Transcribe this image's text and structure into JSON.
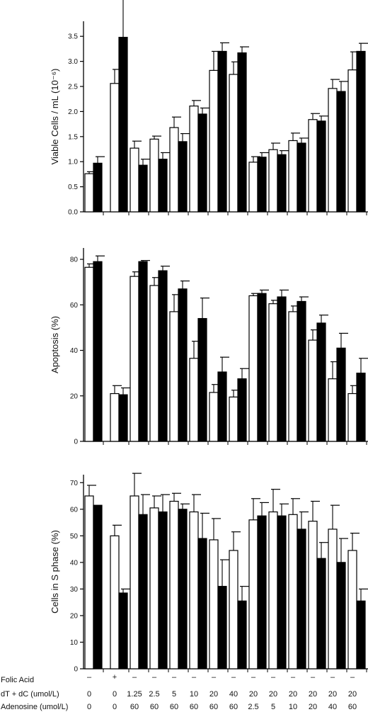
{
  "chart_data": [
    {
      "type": "bar",
      "ylabel": "Viable Cells / mL (10⁻⁶)",
      "ylim": [
        0,
        3.8
      ],
      "yticks": [
        0.0,
        0.5,
        1.0,
        1.5,
        2.0,
        2.5,
        3.0,
        3.5
      ],
      "ytick_labels": [
        "0.0",
        "0.5",
        "1.0",
        "1.5",
        "2.0",
        "2.5",
        "3.0",
        "3.5"
      ],
      "groups": 14,
      "series": [
        {
          "fill": "open",
          "values": [
            0.76,
            2.56,
            1.27,
            1.45,
            1.68,
            2.11,
            2.82,
            2.74,
            0.99,
            1.24,
            1.42,
            1.84,
            2.46,
            2.83
          ],
          "errors": [
            0.04,
            0.28,
            0.14,
            0.06,
            0.21,
            0.11,
            0.38,
            0.25,
            0.11,
            0.13,
            0.15,
            0.12,
            0.18,
            0.36
          ]
        },
        {
          "fill": "filled",
          "values": [
            0.97,
            3.48,
            0.93,
            1.05,
            1.4,
            1.95,
            3.2,
            3.17,
            1.09,
            1.14,
            1.37,
            1.81,
            2.4,
            3.2
          ],
          "errors": [
            0.13,
            0.86,
            0.12,
            0.13,
            0.16,
            0.12,
            0.17,
            0.12,
            0.09,
            0.08,
            0.1,
            0.1,
            0.2,
            0.16
          ]
        }
      ]
    },
    {
      "type": "bar",
      "ylabel": "Apoptosis (%)",
      "ylim": [
        0,
        85
      ],
      "yticks": [
        0,
        20,
        40,
        60,
        80
      ],
      "ytick_labels": [
        "0",
        "20",
        "40",
        "60",
        "80"
      ],
      "groups": 14,
      "series": [
        {
          "fill": "open",
          "values": [
            76.5,
            21,
            72.5,
            68.5,
            57,
            36.5,
            21.5,
            19.5,
            64,
            60.5,
            57,
            44.5,
            27.5,
            21
          ],
          "errors": [
            1.5,
            3.5,
            2,
            3.5,
            7.5,
            7.5,
            3.5,
            3,
            1,
            1.5,
            2.5,
            4.5,
            7.5,
            3.5
          ]
        },
        {
          "fill": "filled",
          "values": [
            79,
            20.5,
            79,
            75,
            67,
            54,
            30.5,
            27.5,
            65,
            63.5,
            61.5,
            52,
            41,
            30
          ],
          "errors": [
            2.5,
            3,
            0.5,
            2,
            3.5,
            9,
            6.5,
            4.5,
            1.5,
            3,
            2,
            3.5,
            6.5,
            6.5
          ]
        }
      ]
    },
    {
      "type": "bar",
      "ylabel": "Cells in S phase (%)",
      "ylim": [
        0,
        73
      ],
      "yticks": [
        0,
        10,
        20,
        30,
        40,
        50,
        60,
        70
      ],
      "ytick_labels": [
        "0",
        "10",
        "20",
        "30",
        "40",
        "50",
        "60",
        "70"
      ],
      "groups": 14,
      "series": [
        {
          "fill": "open",
          "values": [
            65,
            50,
            65,
            60.5,
            63,
            59,
            48.5,
            44.5,
            56,
            59,
            58,
            55.5,
            52.5,
            44.5
          ],
          "errors": [
            4,
            4,
            8.5,
            4.5,
            3,
            6.5,
            8,
            7,
            8,
            8.5,
            6,
            7.5,
            9,
            6.5
          ]
        },
        {
          "fill": "filled",
          "values": [
            61.5,
            28.5,
            58,
            59,
            60,
            49,
            31,
            25.5,
            57.5,
            57.5,
            52.5,
            41.5,
            40,
            25.5
          ],
          "errors": [
            0,
            1.5,
            7.5,
            6.5,
            2,
            9.5,
            10,
            5.5,
            5,
            4.5,
            6.5,
            6,
            9,
            4.5
          ]
        }
      ]
    }
  ],
  "conditions": {
    "rows": [
      {
        "label": "Folic Acid",
        "values": [
          "–",
          "+",
          "–",
          "–",
          "–",
          "–",
          "–",
          "–",
          "–",
          "–",
          "–",
          "–",
          "–",
          "–"
        ]
      },
      {
        "label": "dT + dC (umol/L)",
        "values": [
          "0",
          "0",
          "1.25",
          "2.5",
          "5",
          "10",
          "20",
          "40",
          "20",
          "20",
          "20",
          "20",
          "20",
          "20"
        ]
      },
      {
        "label": "Adenosine (umol/L)",
        "values": [
          "0",
          "0",
          "60",
          "60",
          "60",
          "60",
          "60",
          "60",
          "2.5",
          "5",
          "10",
          "20",
          "40",
          "60"
        ]
      }
    ]
  }
}
